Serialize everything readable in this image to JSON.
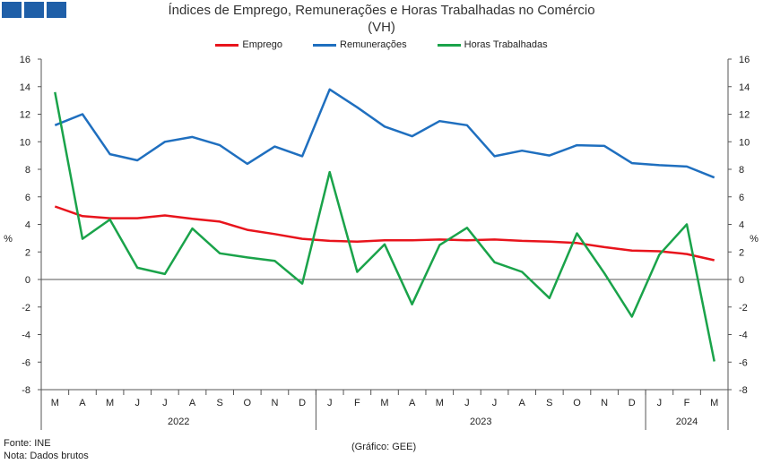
{
  "header": {
    "title": "Índices de Emprego, Remunerações e Horas Trabalhadas no Comércio",
    "subtitle": "(VH)"
  },
  "footer": {
    "source": "Fonte: INE",
    "note": "Nota: Dados brutos",
    "credit": "(Gráfico: GEE)"
  },
  "chart_data": {
    "type": "line",
    "title": "Índices de Emprego, Remunerações e Horas Trabalhadas no Comércio",
    "subtitle": "(VH)",
    "ylabel": "%",
    "ylabel_right": "%",
    "ylim": [
      -8,
      16
    ],
    "yticks": [
      -8,
      -6,
      -4,
      -2,
      0,
      2,
      4,
      6,
      8,
      10,
      12,
      14,
      16
    ],
    "grid": false,
    "legend_position": "top",
    "categories": [
      "M",
      "A",
      "M",
      "J",
      "J",
      "A",
      "S",
      "O",
      "N",
      "D",
      "J",
      "F",
      "M",
      "A",
      "M",
      "J",
      "J",
      "A",
      "S",
      "O",
      "N",
      "D",
      "J",
      "F",
      "M"
    ],
    "years": [
      {
        "label": "2022",
        "start": 0,
        "end": 9
      },
      {
        "label": "2023",
        "start": 10,
        "end": 21
      },
      {
        "label": "2024",
        "start": 22,
        "end": 24
      }
    ],
    "series": [
      {
        "name": "Emprego",
        "color": "#e8141c",
        "values": [
          5.3,
          4.6,
          4.45,
          4.45,
          4.65,
          4.4,
          4.2,
          3.6,
          3.3,
          2.95,
          2.8,
          2.75,
          2.85,
          2.85,
          2.9,
          2.85,
          2.9,
          2.8,
          2.75,
          2.65,
          2.35,
          2.1,
          2.05,
          1.85,
          1.4
        ]
      },
      {
        "name": "Remunerações",
        "color": "#1f6fbf",
        "values": [
          11.2,
          12.0,
          9.1,
          8.65,
          10.0,
          10.35,
          9.75,
          8.4,
          9.65,
          8.95,
          13.8,
          12.5,
          11.1,
          10.4,
          11.5,
          11.2,
          8.95,
          9.35,
          9.0,
          9.75,
          9.7,
          8.45,
          8.3,
          8.2,
          7.4
        ]
      },
      {
        "name": "Horas Trabalhadas",
        "color": "#1aa34a",
        "values": [
          13.6,
          2.95,
          4.35,
          0.85,
          0.4,
          3.7,
          1.9,
          1.6,
          1.35,
          -0.3,
          7.8,
          0.55,
          2.55,
          -1.8,
          2.5,
          3.75,
          1.25,
          0.55,
          -1.35,
          3.35,
          0.45,
          -2.7,
          1.8,
          4.0,
          -5.95
        ]
      }
    ]
  }
}
